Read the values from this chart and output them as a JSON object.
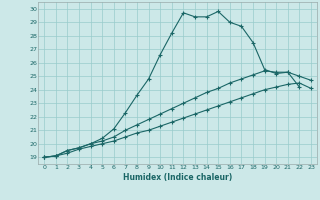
{
  "xlabel": "Humidex (Indice chaleur)",
  "bg_color": "#cce8e8",
  "line_color": "#1a6666",
  "grid_color": "#99cccc",
  "xlim": [
    -0.5,
    23.5
  ],
  "ylim": [
    18.5,
    30.5
  ],
  "xticks": [
    0,
    1,
    2,
    3,
    4,
    5,
    6,
    7,
    8,
    9,
    10,
    11,
    12,
    13,
    14,
    15,
    16,
    17,
    18,
    19,
    20,
    21,
    22,
    23
  ],
  "yticks": [
    19,
    20,
    21,
    22,
    23,
    24,
    25,
    26,
    27,
    28,
    29,
    30
  ],
  "line1_x": [
    0,
    1,
    2,
    3,
    4,
    5,
    6,
    7,
    8,
    9,
    10,
    11,
    12,
    13,
    14,
    15,
    16,
    17,
    18,
    19,
    20,
    21,
    22
  ],
  "line1_y": [
    19.0,
    19.1,
    19.5,
    19.7,
    20.0,
    20.4,
    21.1,
    22.3,
    23.6,
    24.8,
    26.6,
    28.2,
    29.7,
    29.4,
    29.4,
    29.8,
    29.0,
    28.7,
    27.5,
    25.5,
    25.2,
    25.3,
    24.2
  ],
  "line2_x": [
    0,
    1,
    2,
    3,
    4,
    5,
    6,
    7,
    8,
    9,
    10,
    11,
    12,
    13,
    14,
    15,
    16,
    17,
    18,
    19,
    20,
    21,
    22,
    23
  ],
  "line2_y": [
    19.0,
    19.1,
    19.5,
    19.7,
    20.0,
    20.2,
    20.5,
    21.0,
    21.4,
    21.8,
    22.2,
    22.6,
    23.0,
    23.4,
    23.8,
    24.1,
    24.5,
    24.8,
    25.1,
    25.4,
    25.3,
    25.3,
    25.0,
    24.7
  ],
  "line3_x": [
    0,
    1,
    2,
    3,
    4,
    5,
    6,
    7,
    8,
    9,
    10,
    11,
    12,
    13,
    14,
    15,
    16,
    17,
    18,
    19,
    20,
    21,
    22,
    23
  ],
  "line3_y": [
    19.0,
    19.1,
    19.3,
    19.6,
    19.8,
    20.0,
    20.2,
    20.5,
    20.8,
    21.0,
    21.3,
    21.6,
    21.9,
    22.2,
    22.5,
    22.8,
    23.1,
    23.4,
    23.7,
    24.0,
    24.2,
    24.4,
    24.5,
    24.1
  ]
}
